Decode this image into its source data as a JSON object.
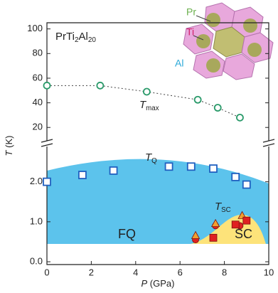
{
  "chart_data": [
    {
      "type": "scatter",
      "title": {
        "formula": [
          "PrTi",
          "2",
          "Al",
          "20"
        ]
      },
      "xlim": [
        0,
        10
      ],
      "ylim": [
        8,
        105
      ],
      "yticks": [
        20,
        40,
        60,
        80,
        100
      ],
      "annotation": {
        "symbol": "T",
        "sub": "max"
      },
      "series": [
        {
          "color": "#2a9a6a",
          "marker": "circle",
          "filled": false,
          "line_style": "dotted",
          "x": [
            0,
            2.4,
            4.5,
            6.8,
            7.7,
            8.7
          ],
          "values": [
            54,
            54,
            49,
            42.5,
            36,
            28
          ]
        }
      ]
    },
    {
      "type": "scatter",
      "xlim": [
        0,
        10
      ],
      "xticks": [
        0,
        2,
        4,
        6,
        8,
        10
      ],
      "ylim": [
        -0.07,
        2.9
      ],
      "yticks": [
        {
          "value": 0,
          "label": "0.0"
        },
        {
          "value": 1,
          "label": "1.0"
        },
        {
          "value": 2,
          "label": "2.0"
        }
      ],
      "xlabel": {
        "symbol": "P",
        "unit": " (GPa)"
      },
      "ylabel": {
        "symbol": "T",
        "unit": " (K)"
      },
      "annotations": {
        "tq": {
          "symbol": "T",
          "sub": "Q"
        },
        "tsc": {
          "symbol": "T",
          "sub": "SC"
        },
        "fq": "FQ",
        "sc": "SC"
      },
      "series": [
        {
          "color": "#2060c0",
          "marker": "square",
          "filled": false,
          "x": [
            0,
            1.6,
            3,
            5.5,
            6.5,
            7.5,
            8.5,
            9
          ],
          "values": [
            2.0,
            2.17,
            2.28,
            2.38,
            2.38,
            2.33,
            2.12,
            1.93
          ]
        },
        {
          "color": "#e02020",
          "marker": "circle",
          "filled": true,
          "x": [
            6.7,
            7.6,
            8.7
          ],
          "values": [
            0.55,
            0.9,
            0.9
          ]
        },
        {
          "color": "#f0a030",
          "marker": "triangle",
          "filled": true,
          "x": [
            6.7,
            7.6,
            8.8
          ],
          "values": [
            0.65,
            0.95,
            1.15
          ]
        },
        {
          "color": "#e02020",
          "marker": "square",
          "filled": true,
          "x": [
            7.5,
            8.5,
            9
          ],
          "values": [
            0.6,
            0.93,
            1.03
          ]
        }
      ]
    }
  ],
  "structure_labels": [
    "Pr",
    "Ti",
    "Al"
  ]
}
